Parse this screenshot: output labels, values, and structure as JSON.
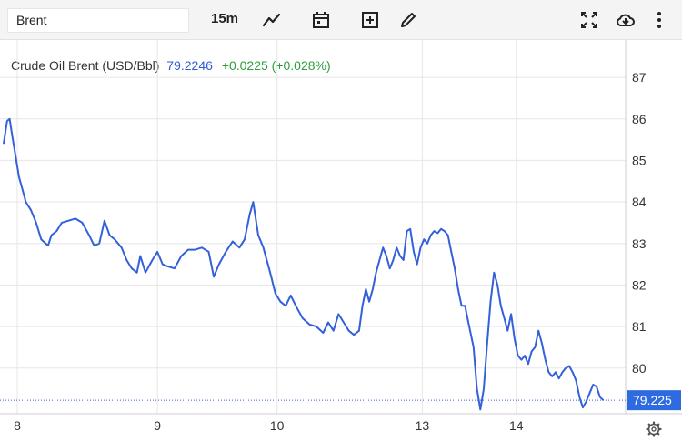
{
  "toolbar": {
    "symbol": "Brent",
    "interval": "15m",
    "icons": [
      "line-chart-icon",
      "calendar-icon",
      "add-indicator-icon",
      "draw-pencil-icon",
      "fullscreen-icon",
      "cloud-download-icon",
      "more-vertical-icon"
    ]
  },
  "legend": {
    "name": "Crude Oil Brent (USD/Bbl)",
    "price": "79.2246",
    "change": "+0.0225 (+0.028%)"
  },
  "colors": {
    "line": "#3461d9",
    "change_positive": "#2e9e3a",
    "price_label_bg": "#2f6be0",
    "grid": "#e6e6e6"
  },
  "chart_data": {
    "type": "line",
    "title": "Crude Oil Brent (USD/Bbl)",
    "xlabel": "",
    "ylabel": "",
    "ylim": [
      78.9,
      87.9
    ],
    "yticks": [
      80,
      81,
      82,
      83,
      84,
      85,
      86,
      87
    ],
    "x_tick_labels": [
      "8",
      "9",
      "10",
      "13",
      "14"
    ],
    "x_tick_positions": [
      0.8,
      9,
      16,
      24.5,
      30
    ],
    "last_value_label": "79.225",
    "last_value": 79.225,
    "grid": true,
    "series": [
      {
        "name": "Brent",
        "points": [
          [
            0,
            85.4
          ],
          [
            0.2,
            85.95
          ],
          [
            0.35,
            86.0
          ],
          [
            0.5,
            85.6
          ],
          [
            0.7,
            85.1
          ],
          [
            0.9,
            84.6
          ],
          [
            1.1,
            84.3
          ],
          [
            1.3,
            84.0
          ],
          [
            1.6,
            83.8
          ],
          [
            1.9,
            83.5
          ],
          [
            2.2,
            83.1
          ],
          [
            2.6,
            82.95
          ],
          [
            2.8,
            83.2
          ],
          [
            3.1,
            83.3
          ],
          [
            3.4,
            83.5
          ],
          [
            3.8,
            83.55
          ],
          [
            4.2,
            83.6
          ],
          [
            4.6,
            83.5
          ],
          [
            5.0,
            83.2
          ],
          [
            5.3,
            82.95
          ],
          [
            5.6,
            83.0
          ],
          [
            5.9,
            83.55
          ],
          [
            6.2,
            83.2
          ],
          [
            6.5,
            83.1
          ],
          [
            6.9,
            82.9
          ],
          [
            7.2,
            82.6
          ],
          [
            7.5,
            82.4
          ],
          [
            7.8,
            82.3
          ],
          [
            8.0,
            82.7
          ],
          [
            8.3,
            82.3
          ],
          [
            8.7,
            82.6
          ],
          [
            9.0,
            82.8
          ],
          [
            9.3,
            82.5
          ],
          [
            9.6,
            82.45
          ],
          [
            10.0,
            82.4
          ],
          [
            10.4,
            82.7
          ],
          [
            10.8,
            82.85
          ],
          [
            11.2,
            82.85
          ],
          [
            11.6,
            82.9
          ],
          [
            12.0,
            82.8
          ],
          [
            12.3,
            82.2
          ],
          [
            12.6,
            82.5
          ],
          [
            13.0,
            82.8
          ],
          [
            13.4,
            83.05
          ],
          [
            13.8,
            82.9
          ],
          [
            14.1,
            83.1
          ],
          [
            14.4,
            83.7
          ],
          [
            14.6,
            84.0
          ],
          [
            14.9,
            83.2
          ],
          [
            15.2,
            82.9
          ],
          [
            15.6,
            82.3
          ],
          [
            15.9,
            81.8
          ],
          [
            16.2,
            81.6
          ],
          [
            16.5,
            81.5
          ],
          [
            16.8,
            81.75
          ],
          [
            17.1,
            81.5
          ],
          [
            17.5,
            81.2
          ],
          [
            17.9,
            81.05
          ],
          [
            18.3,
            81.0
          ],
          [
            18.7,
            80.85
          ],
          [
            19.0,
            81.1
          ],
          [
            19.3,
            80.9
          ],
          [
            19.6,
            81.3
          ],
          [
            19.9,
            81.1
          ],
          [
            20.2,
            80.9
          ],
          [
            20.5,
            80.8
          ],
          [
            20.8,
            80.9
          ],
          [
            21.0,
            81.5
          ],
          [
            21.2,
            81.9
          ],
          [
            21.4,
            81.6
          ],
          [
            21.6,
            81.9
          ],
          [
            21.8,
            82.3
          ],
          [
            22.0,
            82.6
          ],
          [
            22.2,
            82.9
          ],
          [
            22.4,
            82.7
          ],
          [
            22.6,
            82.4
          ],
          [
            22.8,
            82.6
          ],
          [
            23.0,
            82.9
          ],
          [
            23.2,
            82.7
          ],
          [
            23.4,
            82.6
          ],
          [
            23.6,
            83.3
          ],
          [
            23.8,
            83.35
          ],
          [
            24.0,
            82.8
          ],
          [
            24.2,
            82.5
          ],
          [
            24.4,
            82.9
          ],
          [
            24.6,
            83.1
          ],
          [
            24.8,
            83.0
          ],
          [
            25.0,
            83.2
          ],
          [
            25.2,
            83.3
          ],
          [
            25.4,
            83.25
          ],
          [
            25.6,
            83.35
          ],
          [
            25.8,
            83.3
          ],
          [
            26.0,
            83.2
          ],
          [
            26.2,
            82.8
          ],
          [
            26.4,
            82.4
          ],
          [
            26.6,
            81.9
          ],
          [
            26.8,
            81.5
          ],
          [
            27.0,
            81.5
          ],
          [
            27.2,
            81.1
          ],
          [
            27.5,
            80.5
          ],
          [
            27.7,
            79.5
          ],
          [
            27.9,
            79.0
          ],
          [
            28.1,
            79.5
          ],
          [
            28.3,
            80.6
          ],
          [
            28.5,
            81.6
          ],
          [
            28.7,
            82.3
          ],
          [
            28.9,
            82.0
          ],
          [
            29.1,
            81.5
          ],
          [
            29.3,
            81.2
          ],
          [
            29.5,
            80.9
          ],
          [
            29.7,
            81.3
          ],
          [
            29.9,
            80.7
          ],
          [
            30.1,
            80.3
          ],
          [
            30.3,
            80.2
          ],
          [
            30.5,
            80.3
          ],
          [
            30.7,
            80.1
          ],
          [
            30.9,
            80.4
          ],
          [
            31.1,
            80.5
          ],
          [
            31.3,
            80.9
          ],
          [
            31.5,
            80.6
          ],
          [
            31.7,
            80.2
          ],
          [
            31.9,
            79.9
          ],
          [
            32.1,
            79.8
          ],
          [
            32.3,
            79.9
          ],
          [
            32.5,
            79.75
          ],
          [
            32.7,
            79.9
          ],
          [
            32.9,
            80.0
          ],
          [
            33.1,
            80.05
          ],
          [
            33.3,
            79.9
          ],
          [
            33.5,
            79.7
          ],
          [
            33.7,
            79.3
          ],
          [
            33.9,
            79.05
          ],
          [
            34.1,
            79.2
          ],
          [
            34.3,
            79.4
          ],
          [
            34.5,
            79.6
          ],
          [
            34.7,
            79.55
          ],
          [
            34.9,
            79.3
          ],
          [
            35.1,
            79.2246
          ]
        ]
      }
    ]
  }
}
